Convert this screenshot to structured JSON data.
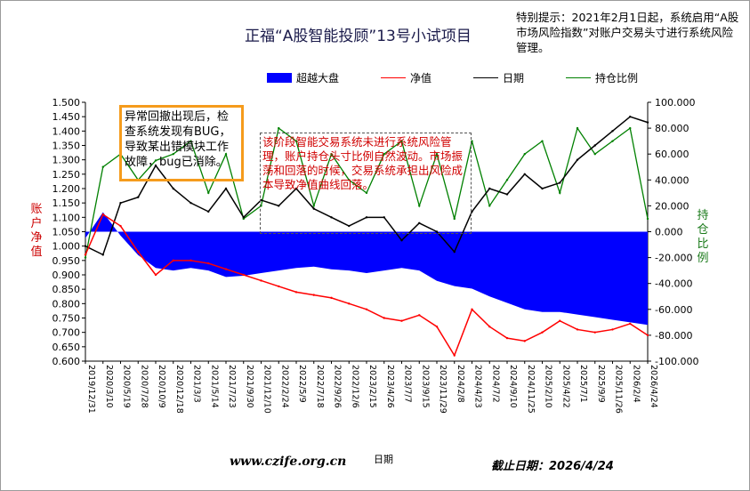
{
  "chart_title": "正福“A股智能投顾”13号小试项目",
  "notice": "特别提示：2021年2月1日起，系统启用“A股市场风险指数”对账户交易头寸进行系统风险管理。",
  "legend": {
    "area": "超越大盘",
    "nav": "净值",
    "date": "日期",
    "position": "持仓比例"
  },
  "ylabel_left": "账户净值",
  "ylabel_right": "持仓比例",
  "xlabel": "日期",
  "footer_url": "www.czife.org.cn",
  "footer_date": "截止日期：2026/4/24",
  "annotation_orange": "异常回撤出现后，检查系统发现有BUG，导致某出错模块工作故障，bug已消除。",
  "annotation_dashed": "该阶段智能交易系统未进行系统风险管理，账户持仓头寸比例自然波动。市场振荡和回落的时候，交易系统承担出风险成本导致净值曲线回落。",
  "colors": {
    "area": "#0000ff",
    "nav": "#ff0000",
    "date": "#000000",
    "position": "#008000",
    "annotation_border": "#f59b1c"
  },
  "chart_data": {
    "type": "line",
    "title": "正福“A股智能投顾”13号小试项目",
    "xlabel": "日期",
    "ylabel_left": "账户净值",
    "ylabel_right": "持仓比例",
    "ylim_left": [
      0.6,
      1.5
    ],
    "ylim_right": [
      -100,
      100
    ],
    "yticks_left": [
      "1.500",
      "1.450",
      "1.400",
      "1.350",
      "1.300",
      "1.250",
      "1.200",
      "1.150",
      "1.100",
      "1.050",
      "1.000",
      "0.950",
      "0.900",
      "0.850",
      "0.800",
      "0.750",
      "0.700",
      "0.650",
      "0.600"
    ],
    "yticks_right": [
      "100.000",
      "80.000",
      "60.000",
      "40.000",
      "20.000",
      "0.000",
      "-20.000",
      "-40.000",
      "-60.000",
      "-80.000",
      "-100.000"
    ],
    "x": [
      "2019/12/31",
      "2020/3/10",
      "2020/5/19",
      "2020/7/28",
      "2020/10/9",
      "2020/12/18",
      "2021/3/3",
      "2021/5/14",
      "2021/7/23",
      "2021/9/30",
      "2021/12/10",
      "2022/2/24",
      "2022/5/9",
      "2022/7/18",
      "2022/9/26",
      "2022/12/6",
      "2023/2/15",
      "2023/4/26",
      "2023/7/7",
      "2023/9/15",
      "2023/11/29",
      "2024/2/8",
      "2024/4/23",
      "2024/7/2",
      "2024/9/10",
      "2024/11/25",
      "2025/2/10",
      "2025/4/22",
      "2025/7/1",
      "2025/9/9",
      "2025/11/26",
      "2026/2/4",
      "2026/4/24"
    ],
    "series": [
      {
        "name": "净值",
        "axis": "left",
        "values": [
          0.97,
          1.11,
          1.07,
          0.98,
          0.9,
          0.95,
          0.95,
          0.94,
          0.92,
          0.9,
          0.88,
          0.86,
          0.84,
          0.83,
          0.82,
          0.8,
          0.78,
          0.75,
          0.74,
          0.76,
          0.72,
          0.62,
          0.78,
          0.72,
          0.68,
          0.67,
          0.7,
          0.74,
          0.71,
          0.7,
          0.71,
          0.73,
          0.69
        ]
      },
      {
        "name": "日期",
        "axis": "left",
        "values": [
          1.0,
          0.97,
          1.15,
          1.17,
          1.28,
          1.2,
          1.15,
          1.12,
          1.2,
          1.1,
          1.16,
          1.14,
          1.2,
          1.13,
          1.1,
          1.07,
          1.1,
          1.1,
          1.02,
          1.08,
          1.05,
          0.98,
          1.12,
          1.2,
          1.18,
          1.25,
          1.2,
          1.22,
          1.3,
          1.35,
          1.4,
          1.45,
          1.43
        ]
      },
      {
        "name": "超越大盘",
        "axis": "right",
        "values": [
          -5,
          15,
          -3,
          -18,
          -28,
          -30,
          -28,
          -30,
          -35,
          -34,
          -32,
          -30,
          -28,
          -27,
          -29,
          -30,
          -32,
          -30,
          -28,
          -30,
          -38,
          -42,
          -44,
          -50,
          -55,
          -60,
          -62,
          -62,
          -64,
          -66,
          -68,
          -70,
          -72
        ]
      },
      {
        "name": "持仓比例",
        "axis": "right",
        "values": [
          -20,
          50,
          60,
          40,
          55,
          60,
          70,
          30,
          60,
          10,
          20,
          80,
          70,
          20,
          60,
          40,
          30,
          60,
          70,
          20,
          60,
          10,
          70,
          20,
          40,
          60,
          70,
          30,
          80,
          60,
          70,
          80,
          10
        ]
      }
    ],
    "grid": false,
    "legend_position": "top"
  }
}
